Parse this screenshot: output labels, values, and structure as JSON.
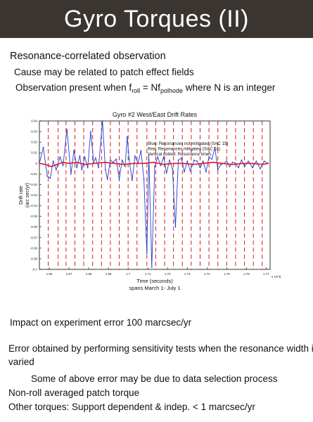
{
  "slide": {
    "title": "Gyro Torques (II)",
    "heading": "Resonance-correlated observation",
    "bullet_1": "Cause may be related to patch effect fields",
    "bullet_2_pre": "Observation present when f",
    "bullet_2_sub1": "roll",
    "bullet_2_mid": " = Nf",
    "bullet_2_sub2": "polhode",
    "bullet_2_post": " where N is an integer",
    "impact": "Impact on experiment error 100 marcsec/yr",
    "error_line_1": "Error obtained by performing sensitivity tests when the resonance width is",
    "error_line_2": "varied",
    "note": "Some of above error may be due to data selection process",
    "nonroll": "Non-roll averaged patch torque",
    "other": "Other torques:  Support dependent & indep. < 1 marcsec/yr"
  },
  "chart_data": {
    "type": "line",
    "title": "Gyro #2 West/East Drift Rates",
    "xlabel": "Time (seconds)",
    "xlabel_2": "spans March 1- July 1",
    "ylabel": "Drift rate",
    "ylabel_2": "(arc sec/yr)",
    "x_exponent": "x 10^8",
    "xlim": [
      1.655,
      1.772
    ],
    "ylim": [
      -0.1,
      0.04
    ],
    "x_ticks": [
      1.66,
      1.67,
      1.68,
      1.69,
      1.7,
      1.71,
      1.72,
      1.73,
      1.74,
      1.75,
      1.76,
      1.77
    ],
    "x_tick_labels": [
      "1.66",
      "1.67",
      "1.68",
      "1.69",
      "1.7",
      "1.71",
      "1.72",
      "1.73",
      "1.74",
      "1.75",
      "1.76",
      "1.77"
    ],
    "y_ticks": [
      0.04,
      0.03,
      0.02,
      0.01,
      0,
      -0.01,
      -0.02,
      -0.03,
      -0.04,
      -0.05,
      -0.06,
      -0.07,
      -0.08,
      -0.09,
      -0.1
    ],
    "y_tick_labels": [
      "0.04",
      "0.03",
      "0.02",
      "0.01",
      "0",
      "-0.01",
      "-0.02",
      "-0.03",
      "-0.04",
      "-0.05",
      "-0.06",
      "-0.07",
      "-0.08",
      "-0.09",
      "-0.1"
    ],
    "legend": [
      "Blue: Resonances not mitigated (SAC 15)",
      "Red: Resonances mitigated (SAC 16)",
      "Vertical dotted: Resonance times"
    ],
    "resonance_times": [
      1.6595,
      1.6645,
      1.6685,
      1.673,
      1.6775,
      1.682,
      1.6865,
      1.691,
      1.6955,
      1.7,
      1.7045,
      1.7095,
      1.714,
      1.7185,
      1.723,
      1.7275,
      1.732,
      1.7365,
      1.741,
      1.7455,
      1.75,
      1.7545,
      1.759,
      1.7635,
      1.768
    ],
    "series": [
      {
        "color": "#1f3fd6",
        "x": [
          1.655,
          1.657,
          1.659,
          1.6605,
          1.662,
          1.6635,
          1.6655,
          1.667,
          1.669,
          1.671,
          1.6725,
          1.674,
          1.6755,
          1.6765,
          1.678,
          1.6795,
          1.681,
          1.6825,
          1.6835,
          1.685,
          1.687,
          1.6885,
          1.6895,
          1.691,
          1.6925,
          1.694,
          1.6955,
          1.697,
          1.6985,
          1.6995,
          1.7005,
          1.702,
          1.7035,
          1.705,
          1.7065,
          1.708,
          1.7095,
          1.7105,
          1.712,
          1.7135,
          1.715,
          1.7165,
          1.718,
          1.7195,
          1.721,
          1.7225,
          1.724,
          1.7255,
          1.727,
          1.7285,
          1.73,
          1.7315,
          1.7335,
          1.735,
          1.7365,
          1.738,
          1.7395,
          1.741,
          1.7425,
          1.744,
          1.7455,
          1.747,
          1.7485,
          1.75,
          1.7515,
          1.753,
          1.7545,
          1.756,
          1.7575,
          1.759,
          1.761,
          1.763,
          1.765,
          1.767,
          1.769,
          1.771
        ],
        "values": [
          0.0,
          0.015,
          -0.012,
          -0.014,
          0.002,
          -0.006,
          0.006,
          -0.002,
          0.032,
          -0.01,
          0.012,
          -0.004,
          0.007,
          -0.006,
          0.006,
          -0.004,
          0.03,
          0.001,
          0.005,
          -0.004,
          0.04,
          -0.006,
          -0.015,
          0.003,
          0.001,
          0.004,
          -0.015,
          0.003,
          -0.003,
          0.025,
          0.004,
          -0.016,
          0.007,
          0.0,
          0.012,
          -0.015,
          -0.085,
          0.008,
          -0.098,
          -0.003,
          0.006,
          -0.002,
          0.006,
          -0.009,
          0.003,
          -0.005,
          -0.06,
          0.003,
          0.005,
          -0.008,
          0.002,
          -0.007,
          0.003,
          0.002,
          -0.004,
          0.002,
          -0.008,
          0.006,
          0.004,
          0.015,
          -0.006,
          -0.001,
          0.0,
          0.002,
          -0.003,
          0.001,
          0.0,
          -0.004,
          0.003,
          -0.003,
          0.002,
          -0.004,
          0.002,
          -0.005,
          0.002,
          0.0
        ]
      },
      {
        "color": "#e01a1a",
        "x": [
          1.655,
          1.658,
          1.661,
          1.664,
          1.667,
          1.67,
          1.674,
          1.678,
          1.683,
          1.688,
          1.693,
          1.698,
          1.703,
          1.708,
          1.713,
          1.718,
          1.723,
          1.728,
          1.733,
          1.738,
          1.743,
          1.748,
          1.753,
          1.758,
          1.763,
          1.768,
          1.771
        ],
        "values": [
          0.0,
          -0.001,
          -0.003,
          -0.001,
          0.001,
          0.0,
          0.001,
          -0.001,
          0.0,
          0.001,
          0.0,
          -0.001,
          0.0,
          0.0,
          0.001,
          -0.001,
          0.0,
          0.0,
          -0.001,
          0.0,
          0.001,
          0.0,
          -0.001,
          0.0,
          0.0,
          -0.001,
          0.0
        ]
      }
    ]
  }
}
